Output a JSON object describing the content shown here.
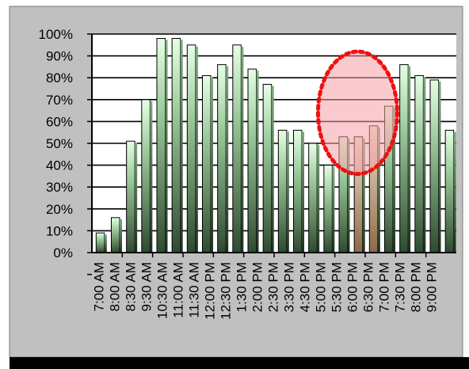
{
  "chart_data": {
    "type": "bar",
    "categories": [
      "7:00 AM",
      "8:00 AM",
      "8:30 AM",
      "9:30 AM",
      "10:30 AM",
      "11:00 AM",
      "11:30 AM",
      "12:00 PM",
      "12:30 PM",
      "1:30 PM",
      "2:00 PM",
      "2:30 PM",
      "3:30 PM",
      "4:30 PM",
      "5:00 PM",
      "5:30 PM",
      "6:00 PM",
      "6:30 PM",
      "7:00 PM",
      "7:30 PM",
      "8:00 PM",
      "9:00 PM"
    ],
    "y_ticks": [
      "0%",
      "10%",
      "20%",
      "30%",
      "40%",
      "50%",
      "60%",
      "70%",
      "80%",
      "90%",
      "100%"
    ],
    "ylim": [
      0,
      100
    ],
    "series": [
      {
        "values": [
          [
            9,
            16
          ],
          [
            51,
            70
          ],
          [
            98,
            98
          ],
          [
            95,
            81
          ],
          [
            86,
            95
          ],
          [
            84,
            77
          ],
          [
            56,
            56
          ],
          [
            50,
            40
          ],
          [
            53,
            53
          ],
          [
            58,
            67
          ],
          [
            86,
            81
          ],
          [
            79,
            56
          ]
        ]
      }
    ],
    "bar_slots": [
      9,
      16,
      51,
      70,
      98,
      98,
      95,
      81,
      86,
      95,
      84,
      77,
      56,
      56,
      50,
      40,
      53,
      53,
      58,
      67,
      86,
      81,
      79,
      56
    ],
    "highlighted_bars": [
      17,
      18
    ],
    "highlight_ellipse": {
      "x_center": 17.5,
      "y_center": 64,
      "y_radius": 28
    },
    "grid": true,
    "legend": "none",
    "colors": {
      "panel": "#c0c0c0",
      "plot_bg": "#ffffff",
      "bar_top": "#e6ffe6",
      "bar_mid": "#9bc99b",
      "bar_bottom": "#2f4a2f",
      "highlight_bar_top": "#f5e3c8",
      "highlight_bar_bottom": "#8a6a4a",
      "ellipse_fill": "#f4a0a8",
      "ellipse_stroke": "#ee1111",
      "grid": "#000000",
      "footer_bar": "#000000"
    }
  }
}
